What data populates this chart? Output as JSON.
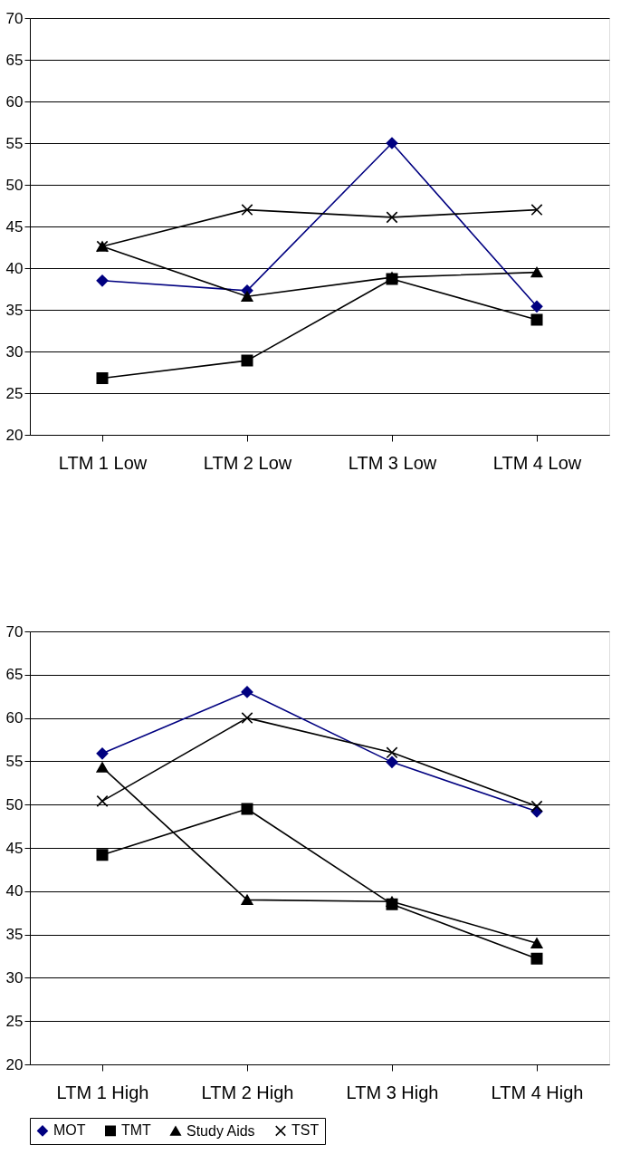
{
  "chart_data": [
    {
      "type": "line",
      "categories": [
        "LTM 1 Low",
        "LTM 2 Low",
        "LTM 3 Low",
        "LTM 4 Low"
      ],
      "ylim": [
        20,
        70
      ],
      "yticks": [
        20,
        25,
        30,
        35,
        40,
        45,
        50,
        55,
        60,
        65,
        70
      ],
      "grid": "y",
      "series": [
        {
          "color": "#000080",
          "marker": "diamond",
          "values": [
            38.5,
            37.3,
            55,
            35.4
          ]
        },
        {
          "color": "#000000",
          "marker": "square",
          "values": [
            26.8,
            28.9,
            38.7,
            33.8
          ]
        },
        {
          "color": "#000000",
          "marker": "triangle",
          "values": [
            42.6,
            36.6,
            38.9,
            39.5
          ]
        },
        {
          "color": "#000000",
          "marker": "cross",
          "values": [
            42.6,
            47,
            46.1,
            47
          ]
        }
      ]
    },
    {
      "type": "line",
      "categories": [
        "LTM 1 High",
        "LTM 2 High",
        "LTM 3 High",
        "LTM 4 High"
      ],
      "ylim": [
        20,
        70
      ],
      "yticks": [
        20,
        25,
        30,
        35,
        40,
        45,
        50,
        55,
        60,
        65,
        70
      ],
      "grid": "y",
      "legend": "bottom",
      "series": [
        {
          "name": "MOT",
          "color": "#000080",
          "marker": "diamond",
          "values": [
            55.9,
            63,
            54.9,
            49.2
          ]
        },
        {
          "name": "TMT",
          "color": "#000000",
          "marker": "square",
          "values": [
            44.2,
            49.5,
            38.5,
            32.2
          ]
        },
        {
          "name": "Study Aids",
          "color": "#000000",
          "marker": "triangle",
          "values": [
            54.3,
            39,
            38.8,
            34
          ]
        },
        {
          "name": "TST",
          "color": "#000000",
          "marker": "cross",
          "values": [
            50.4,
            60,
            56,
            49.8
          ]
        }
      ]
    }
  ]
}
